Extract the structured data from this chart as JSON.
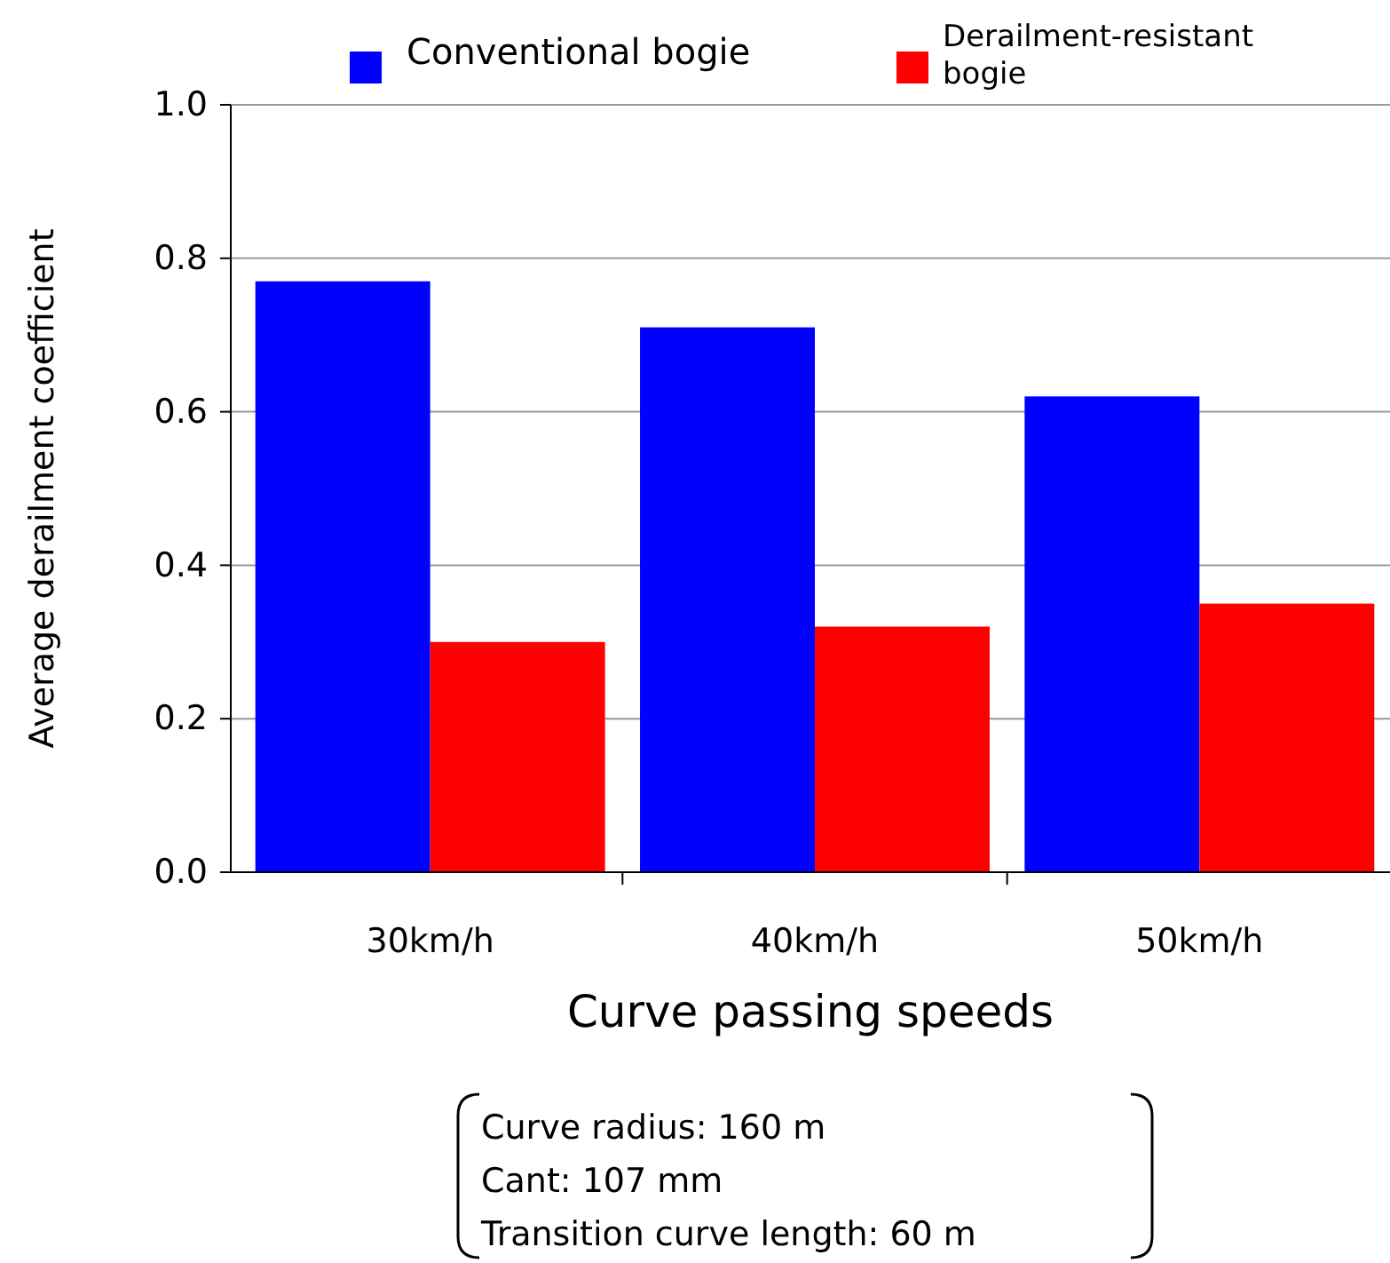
{
  "chart_data": {
    "type": "bar",
    "xlabel": "Curve passing speeds",
    "ylabel": "Average derailment coefficient",
    "categories": [
      "30km/h",
      "40km/h",
      "50km/h"
    ],
    "series": [
      {
        "name": "Conventional bogie",
        "color": "#0000ff",
        "values": [
          0.77,
          0.71,
          0.62
        ]
      },
      {
        "name": "Derailment-resistant bogie",
        "color": "#ff0000",
        "values": [
          0.3,
          0.32,
          0.35
        ]
      }
    ],
    "ylim": [
      0,
      1
    ],
    "yticks": [
      {
        "value": 0,
        "label": "0.0"
      },
      0.2,
      0.4,
      0.6,
      0.8,
      {
        "value": 1,
        "label": "1.0"
      }
    ],
    "grid": "y",
    "legend": "top",
    "annotations": [
      "Curve radius: 160 m",
      "Cant: 107 mm",
      "Transition curve length: 60 m"
    ]
  }
}
